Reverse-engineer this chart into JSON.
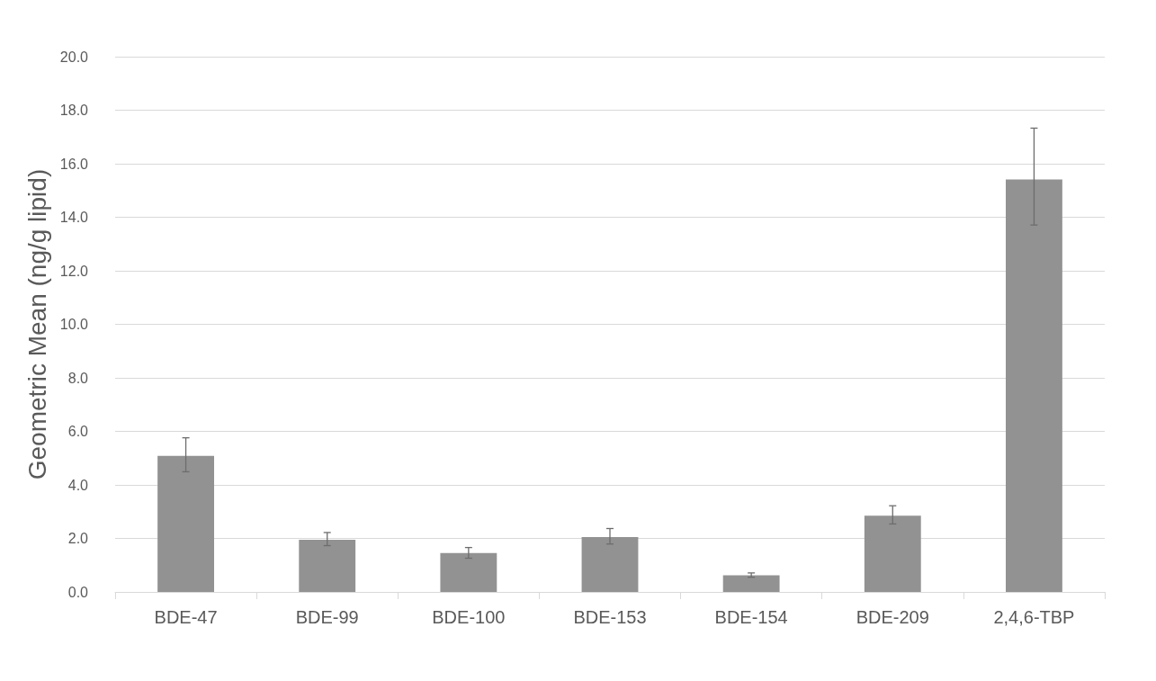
{
  "chart_data": {
    "type": "bar",
    "ylabel": "Geometric Mean (ng/g lipid)",
    "categories": [
      "BDE-47",
      "BDE-99",
      "BDE-100",
      "BDE-153",
      "BDE-154",
      "BDE-209",
      "2,4,6-TBP"
    ],
    "values": [
      5.08,
      1.95,
      1.45,
      2.05,
      0.62,
      2.85,
      15.41
    ],
    "errors": [
      [
        4.49,
        5.76
      ],
      [
        1.73,
        2.22
      ],
      [
        1.26,
        1.66
      ],
      [
        1.79,
        2.37
      ],
      [
        0.55,
        0.71
      ],
      [
        2.54,
        3.22
      ],
      [
        13.71,
        17.33
      ]
    ],
    "color": "#929292",
    "ylim": [
      0,
      20
    ],
    "yticks": [
      {
        "value": 0,
        "label": "0.0"
      },
      {
        "value": 2,
        "label": "2.0"
      },
      {
        "value": 4,
        "label": "4.0"
      },
      {
        "value": 6,
        "label": "6.0"
      },
      {
        "value": 8,
        "label": "8.0"
      },
      {
        "value": 10,
        "label": "10.0"
      },
      {
        "value": 12,
        "label": "12.0"
      },
      {
        "value": 14,
        "label": "14.0"
      },
      {
        "value": 16,
        "label": "16.0"
      },
      {
        "value": 18,
        "label": "18.0"
      },
      {
        "value": 20,
        "label": "20.0"
      }
    ],
    "grid": "y"
  }
}
